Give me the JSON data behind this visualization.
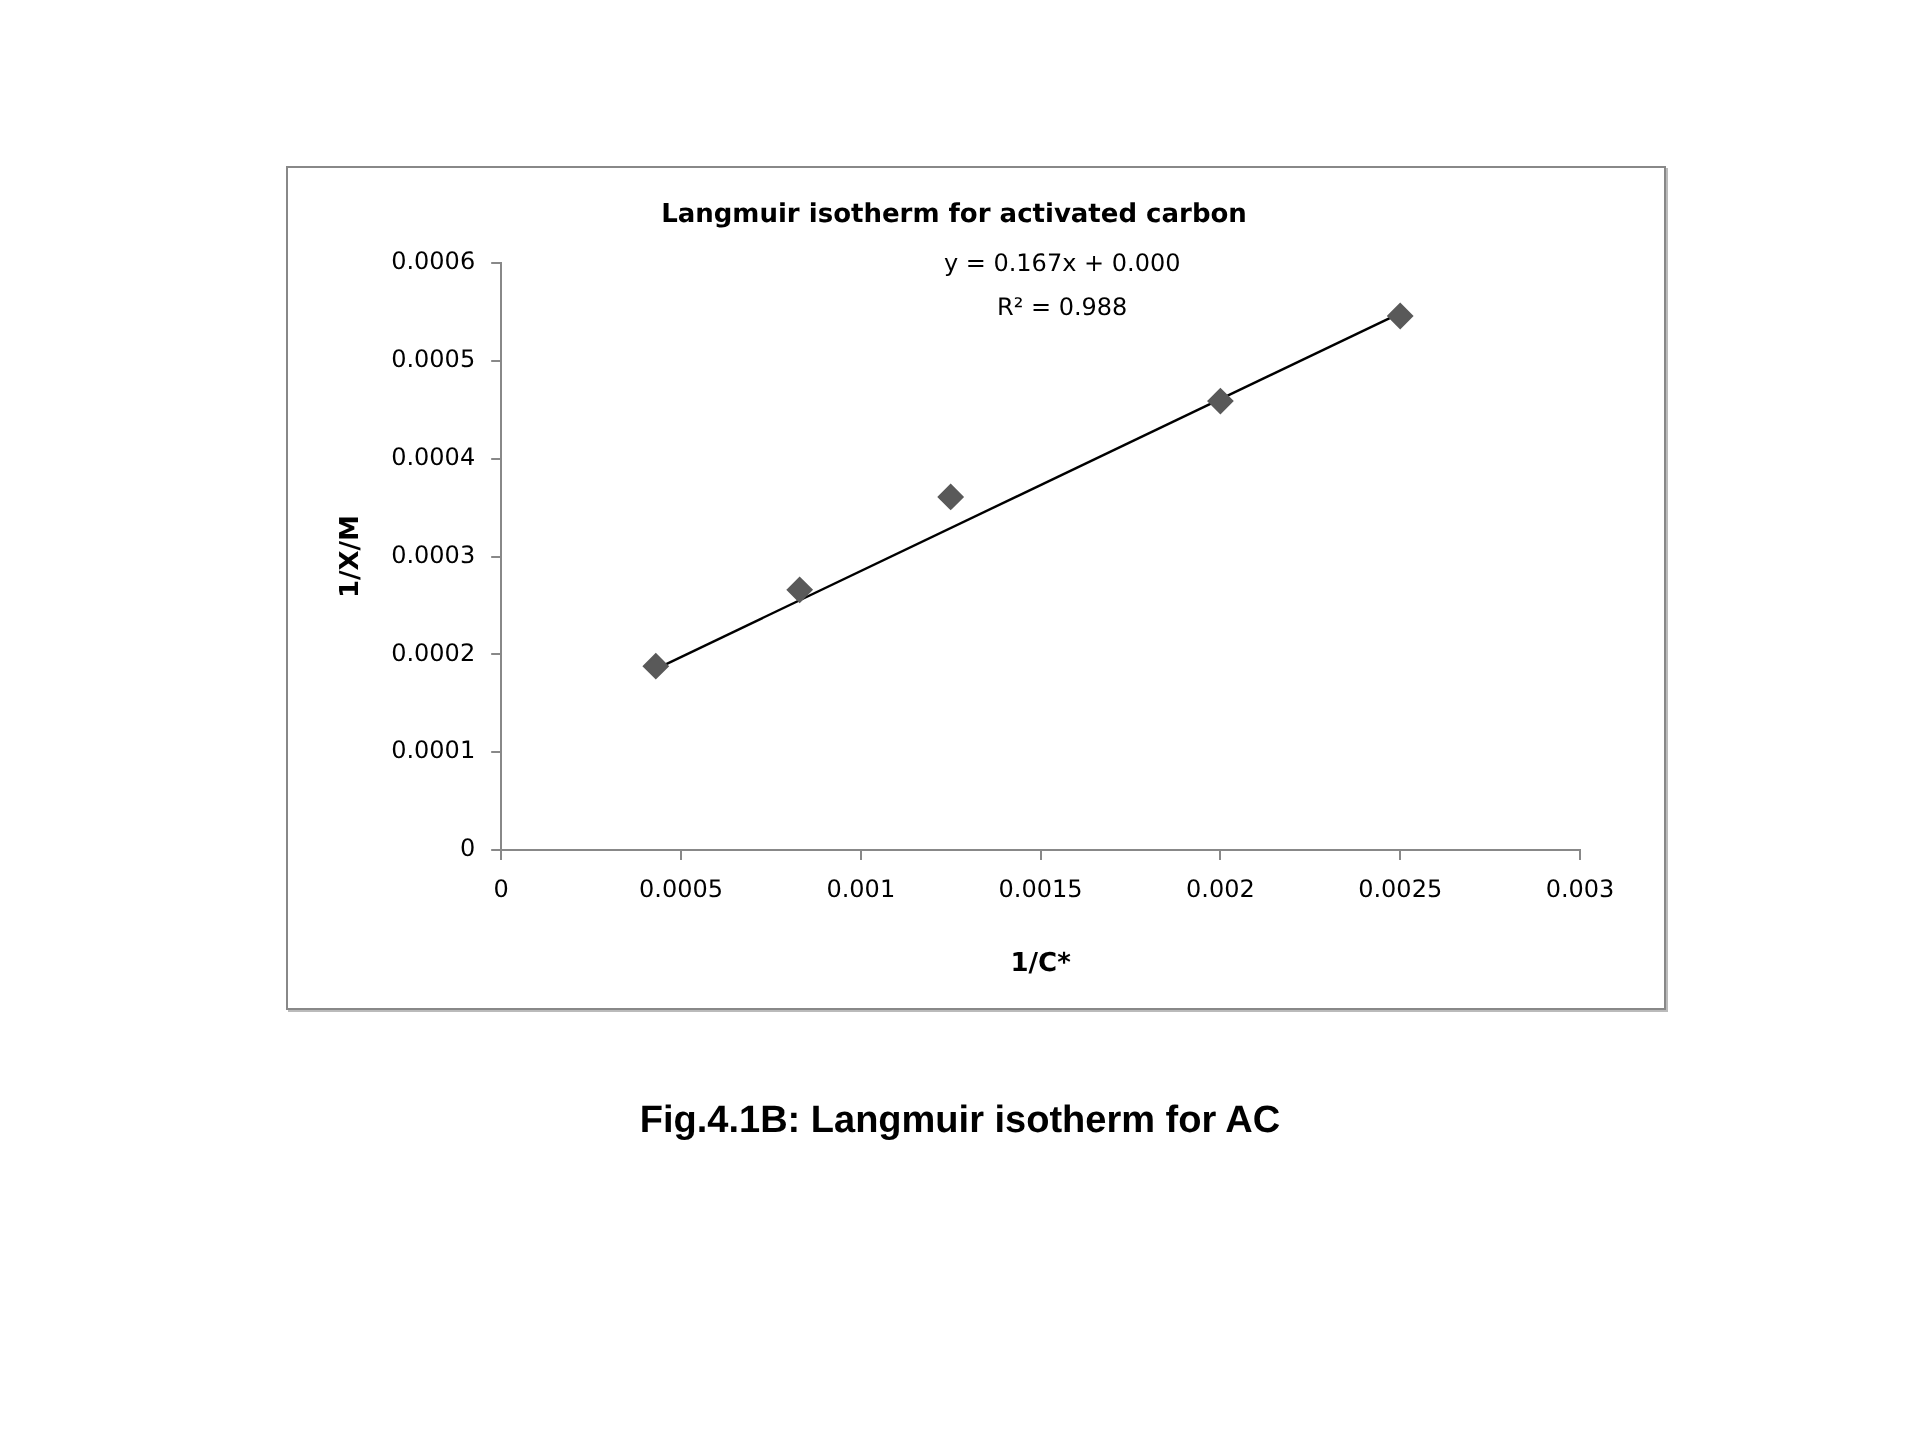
{
  "chart_data": {
    "type": "scatter",
    "title": "Langmuir isotherm for activated carbon",
    "xlabel": "1/C*",
    "ylabel": "1/X/M",
    "series": [
      {
        "color": "#595959",
        "x": [
          0.00043,
          0.00083,
          0.00125,
          0.002,
          0.0025
        ],
        "values": [
          0.000188,
          0.000266,
          0.000361,
          0.000459,
          0.000546
        ]
      },
      {
        "type": "line",
        "marker": "none",
        "color": "#000000",
        "x": [
          0.00043,
          0.0025
        ],
        "values": [
          0.000185,
          0.000549
        ]
      }
    ],
    "marker": "diamond",
    "grid": false,
    "legend": false,
    "xlim": [
      0,
      0.003
    ],
    "xticks": [
      0,
      0.0005,
      0.001,
      0.0015,
      0.002,
      0.0025,
      0.003
    ],
    "ylim": [
      0,
      0.0006
    ],
    "yticks": [
      0,
      0.0001,
      0.0002,
      0.0003,
      0.0004,
      0.0005,
      0.0006
    ],
    "annotations": [
      "y = 0.167x + 0.000",
      "R² = 0.988",
      "Fig.4.1B: Langmuir isotherm for AC"
    ]
  }
}
